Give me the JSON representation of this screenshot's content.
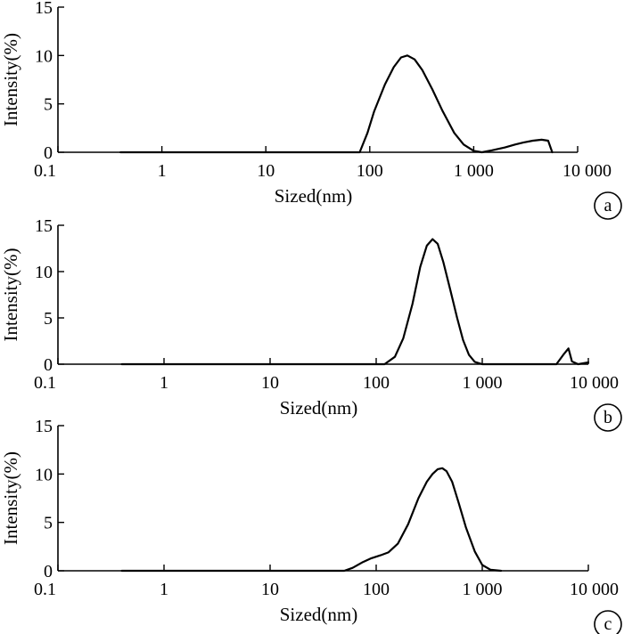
{
  "chart_data": [
    {
      "type": "line",
      "panel_label": "a",
      "xlabel": "Sized(nm)",
      "ylabel": "Intensity(%)",
      "x_scale": "log",
      "xlim": [
        0.1,
        10000
      ],
      "ylim": [
        0,
        15
      ],
      "x_ticks": [
        0.1,
        1,
        10,
        100,
        1000,
        10000
      ],
      "x_tick_labels": [
        "0.1",
        "1",
        "10",
        "100",
        "1 000",
        "10 000"
      ],
      "y_ticks": [
        0,
        5,
        10,
        15
      ],
      "y_tick_labels": [
        "0",
        "5",
        "10",
        "15"
      ],
      "series": [
        {
          "x": [
            0.4,
            10,
            50,
            80,
            95,
            110,
            140,
            170,
            200,
            230,
            270,
            320,
            400,
            500,
            650,
            800,
            1000,
            1200,
            1500,
            2000,
            2500,
            3000,
            3700,
            4500,
            5200,
            5700
          ],
          "y": [
            0,
            0,
            0,
            0,
            2.0,
            4.2,
            7.0,
            8.8,
            9.8,
            10.0,
            9.6,
            8.5,
            6.5,
            4.3,
            2.0,
            0.8,
            0.15,
            0,
            0.2,
            0.5,
            0.8,
            1.0,
            1.2,
            1.3,
            1.2,
            0
          ]
        }
      ]
    },
    {
      "type": "line",
      "panel_label": "b",
      "xlabel": "Sized(nm)",
      "ylabel": "Intensity(%)",
      "x_scale": "log",
      "xlim": [
        0.1,
        10000
      ],
      "ylim": [
        0,
        15
      ],
      "x_ticks": [
        0.1,
        1,
        10,
        100,
        1000,
        10000
      ],
      "x_tick_labels": [
        "0.1",
        "1",
        "10",
        "100",
        "1 000",
        "10 000"
      ],
      "y_ticks": [
        0,
        5,
        10,
        15
      ],
      "y_tick_labels": [
        "0",
        "5",
        "10",
        "15"
      ],
      "series": [
        {
          "x": [
            0.4,
            10,
            100,
            120,
            150,
            180,
            220,
            260,
            300,
            340,
            380,
            430,
            500,
            580,
            660,
            750,
            850,
            1000,
            2000,
            5000,
            5800,
            6500,
            7000,
            8000,
            10000
          ],
          "y": [
            0,
            0,
            0,
            0,
            0.8,
            2.8,
            6.5,
            10.5,
            12.8,
            13.5,
            13.0,
            11.0,
            8.0,
            5.0,
            2.6,
            1.0,
            0.25,
            0,
            0,
            0,
            1.0,
            1.7,
            0.3,
            0,
            0.2
          ]
        }
      ]
    },
    {
      "type": "line",
      "panel_label": "c",
      "xlabel": "Sized(nm)",
      "ylabel": "Intensity(%)",
      "x_scale": "log",
      "xlim": [
        0.1,
        10000
      ],
      "ylim": [
        0,
        15
      ],
      "x_ticks": [
        0.1,
        1,
        10,
        100,
        1000,
        10000
      ],
      "x_tick_labels": [
        "0.1",
        "1",
        "10",
        "100",
        "1 000",
        "10 000"
      ],
      "y_ticks": [
        0,
        5,
        10,
        15
      ],
      "y_tick_labels": [
        "0",
        "5",
        "10",
        "15"
      ],
      "series": [
        {
          "x": [
            0.4,
            10,
            50,
            60,
            75,
            90,
            110,
            130,
            160,
            200,
            250,
            300,
            340,
            380,
            420,
            460,
            520,
            600,
            700,
            850,
            1000,
            1200,
            1500
          ],
          "y": [
            0,
            0,
            0,
            0.3,
            0.9,
            1.3,
            1.6,
            1.9,
            2.8,
            4.8,
            7.5,
            9.2,
            10.0,
            10.5,
            10.6,
            10.3,
            9.2,
            7.0,
            4.5,
            2.0,
            0.6,
            0.1,
            0
          ]
        }
      ]
    }
  ]
}
